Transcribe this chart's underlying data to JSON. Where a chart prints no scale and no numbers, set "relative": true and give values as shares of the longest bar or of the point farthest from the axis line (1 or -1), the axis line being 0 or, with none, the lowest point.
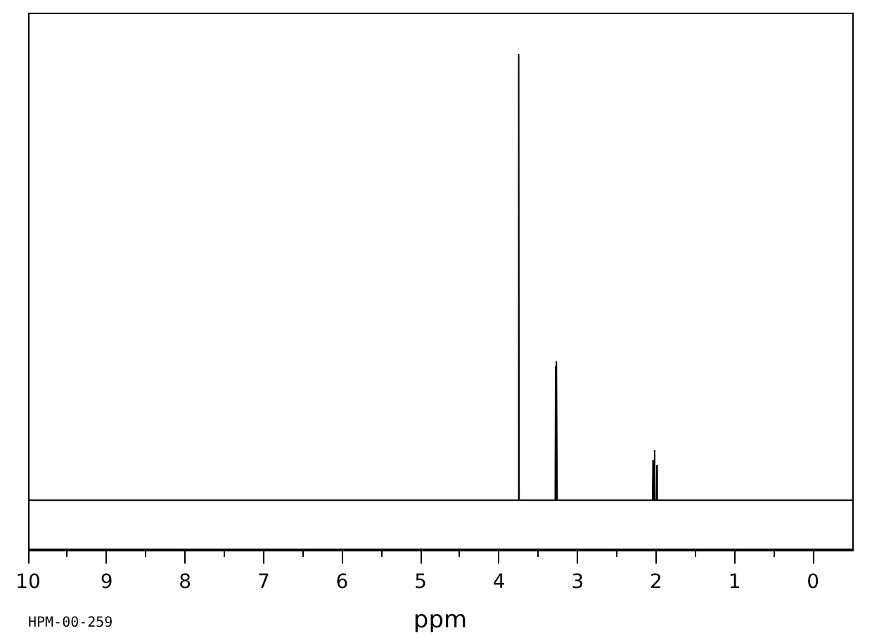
{
  "chart_data": {
    "type": "line",
    "relative": true,
    "xlabel": "ppm",
    "color": "#000000",
    "x": [
      10,
      3.755,
      3.75,
      3.745,
      3.285,
      3.28,
      3.275,
      3.27,
      3.265,
      3.26,
      2.045,
      2.04,
      2.035,
      2.025,
      2.02,
      2.015,
      1.995,
      1.99,
      1.985,
      -0.5
    ],
    "values": [
      0.1,
      0.1,
      1,
      0.1,
      0.1,
      0.37,
      0.1,
      0.1,
      0.38,
      0.1,
      0.1,
      0.18,
      0.1,
      0.1,
      0.2,
      0.1,
      0.1,
      0.17,
      0.1,
      0.1
    ],
    "xlim": [
      10,
      -0.5
    ],
    "xticks": [
      10,
      {
        "value": 9.5,
        "label": null
      },
      9,
      {
        "value": 8.5,
        "label": null
      },
      8,
      {
        "value": 7.5,
        "label": null
      },
      7,
      {
        "value": 6.5,
        "label": null
      },
      6,
      {
        "value": 5.5,
        "label": null
      },
      5,
      {
        "value": 4.5,
        "label": null
      },
      4,
      {
        "value": 3.5,
        "label": null
      },
      3,
      {
        "value": 2.5,
        "label": null
      },
      2,
      {
        "value": 1.5,
        "label": null
      },
      1,
      {
        "value": 0.5,
        "label": null
      },
      0
    ],
    "annotations": [
      "HPM-00-259"
    ]
  }
}
